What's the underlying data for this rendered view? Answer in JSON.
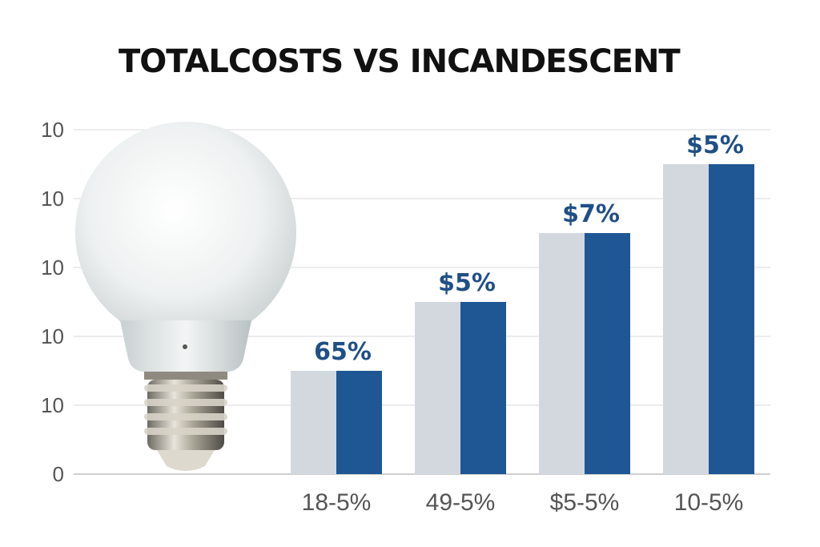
{
  "chart_data": {
    "type": "bar",
    "title": "TOTALCOSTS VS INCANDESCENT",
    "xlabel": "",
    "ylabel": "",
    "categories": [
      "18-5%",
      "49-5%",
      "$5-5%",
      "10-5%"
    ],
    "y_tick_labels": [
      "0",
      "10",
      "10",
      "10",
      "10",
      "10"
    ],
    "ylim": [
      0,
      5
    ],
    "grid": true,
    "legend": "none",
    "series": [
      {
        "values": [
          1.5,
          2.5,
          3.5,
          4.5
        ],
        "color": "#d3d8de"
      },
      {
        "values": [
          1.5,
          2.5,
          3.5,
          4.5
        ],
        "color": "#1f5795"
      }
    ],
    "data_labels": [
      "65%",
      "$5%",
      "$7%",
      "$5%"
    ],
    "illustration": "light-bulb-icon"
  }
}
